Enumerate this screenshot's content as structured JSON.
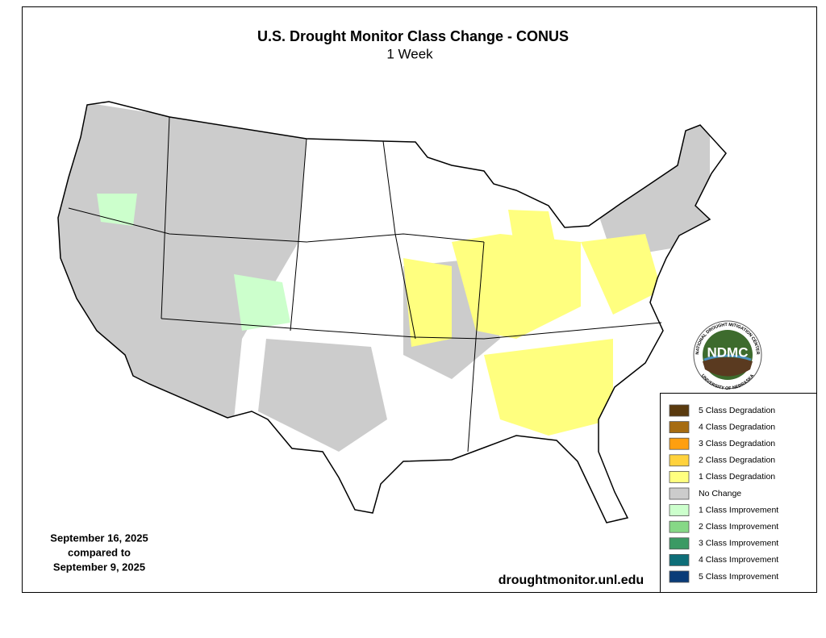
{
  "map": {
    "title": "U.S. Drought Monitor Class Change - CONUS",
    "subtitle": "1 Week",
    "date_lines": [
      "September 16, 2025",
      "compared to",
      "September 9, 2025"
    ],
    "source": "droughtmonitor.unl.edu",
    "legend": [
      {
        "label": "5 Class Degradation",
        "color": "#5a3a0e"
      },
      {
        "label": "4 Class Degradation",
        "color": "#a66c12"
      },
      {
        "label": "3 Class Degradation",
        "color": "#ff9f0f"
      },
      {
        "label": "2 Class Degradation",
        "color": "#ffd23c"
      },
      {
        "label": "1 Class Degradation",
        "color": "#ffff7f"
      },
      {
        "label": "No Change",
        "color": "#cccccc"
      },
      {
        "label": "1 Class Improvement",
        "color": "#ccffcc"
      },
      {
        "label": "2 Class Improvement",
        "color": "#86d886"
      },
      {
        "label": "3 Class Improvement",
        "color": "#3b9a64"
      },
      {
        "label": "4 Class Improvement",
        "color": "#0e6e78"
      },
      {
        "label": "5 Class Improvement",
        "color": "#0a3c78"
      }
    ],
    "logo": {
      "text": "NDMC",
      "ring_top": "NATIONAL DROUGHT MITIGATION CENTER",
      "ring_bottom": "UNIVERSITY OF NEBRASKA"
    }
  }
}
